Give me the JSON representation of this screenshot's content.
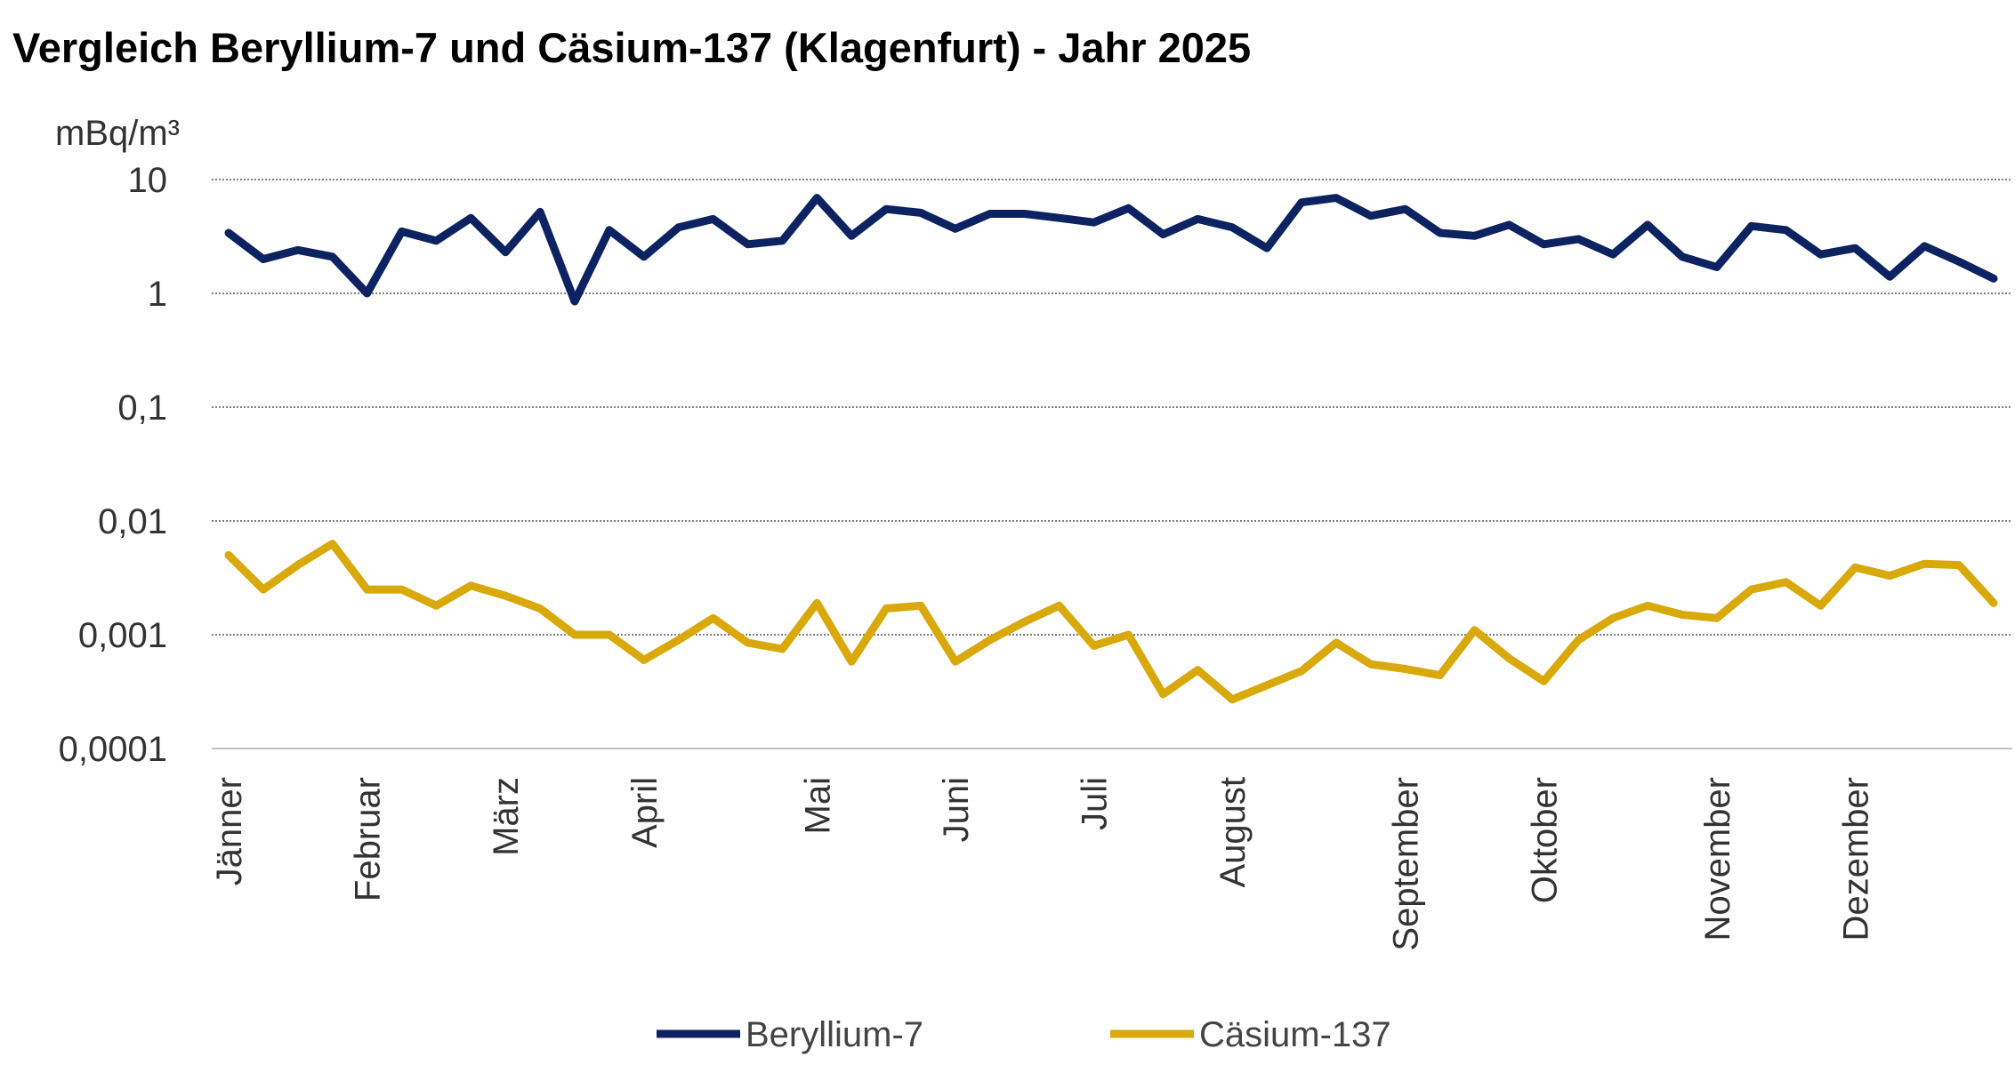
{
  "chart_data": {
    "type": "line",
    "title": "Vergleich Beryllium-7 und Cäsium-137 (Klagenfurt) - Jahr 2025",
    "ylabel": "mBq/m³",
    "xlabel": "",
    "yscale": "log",
    "ylim": [
      0.0001,
      10
    ],
    "yticks": [
      "0,0001",
      "0,001",
      "0,01",
      "0,1",
      "1",
      "10"
    ],
    "grid": true,
    "legend": "bottom",
    "month_labels": [
      {
        "label": "Jänner",
        "index": 0
      },
      {
        "label": "Februar",
        "index": 4
      },
      {
        "label": "März",
        "index": 8
      },
      {
        "label": "April",
        "index": 12
      },
      {
        "label": "Mai",
        "index": 17
      },
      {
        "label": "Juni",
        "index": 21
      },
      {
        "label": "Juli",
        "index": 25
      },
      {
        "label": "August",
        "index": 29
      },
      {
        "label": "September",
        "index": 34
      },
      {
        "label": "Oktober",
        "index": 38
      },
      {
        "label": "November",
        "index": 43
      },
      {
        "label": "Dezember",
        "index": 47
      }
    ],
    "series": [
      {
        "name": "Beryllium-7",
        "color": "#0d2361",
        "values": [
          3.4,
          2.0,
          2.4,
          2.1,
          1.0,
          3.5,
          2.9,
          4.6,
          2.3,
          5.2,
          0.85,
          3.6,
          2.1,
          3.8,
          4.5,
          2.7,
          2.9,
          6.9,
          3.2,
          5.5,
          5.1,
          3.7,
          5.0,
          5.0,
          4.6,
          4.2,
          5.6,
          3.3,
          4.5,
          3.8,
          2.5,
          6.3,
          6.9,
          4.8,
          5.5,
          3.4,
          3.2,
          4.0,
          2.7,
          3.0,
          2.2,
          4.0,
          2.1,
          1.7,
          3.9,
          3.6,
          2.2,
          2.5,
          1.4,
          2.6,
          1.9,
          1.35
        ]
      },
      {
        "name": "Cäsium-137",
        "color": "#d9a90b",
        "values": [
          0.005,
          0.0025,
          0.0041,
          0.0063,
          0.0025,
          0.0025,
          0.0018,
          0.0027,
          0.0022,
          0.0017,
          0.001,
          0.001,
          0.0006,
          0.0009,
          0.0014,
          0.00085,
          0.00075,
          0.0019,
          0.00058,
          0.0017,
          0.0018,
          0.00058,
          0.0009,
          0.0013,
          0.0018,
          0.0008,
          0.001,
          0.0003,
          0.00049,
          0.00027,
          0.00036,
          0.00048,
          0.00085,
          0.00055,
          0.0005,
          0.00044,
          0.0011,
          0.00062,
          0.00039,
          0.0009,
          0.0014,
          0.0018,
          0.0015,
          0.0014,
          0.0025,
          0.0029,
          0.0018,
          0.0039,
          0.0033,
          0.0042,
          0.0041,
          0.0019
        ]
      }
    ]
  }
}
